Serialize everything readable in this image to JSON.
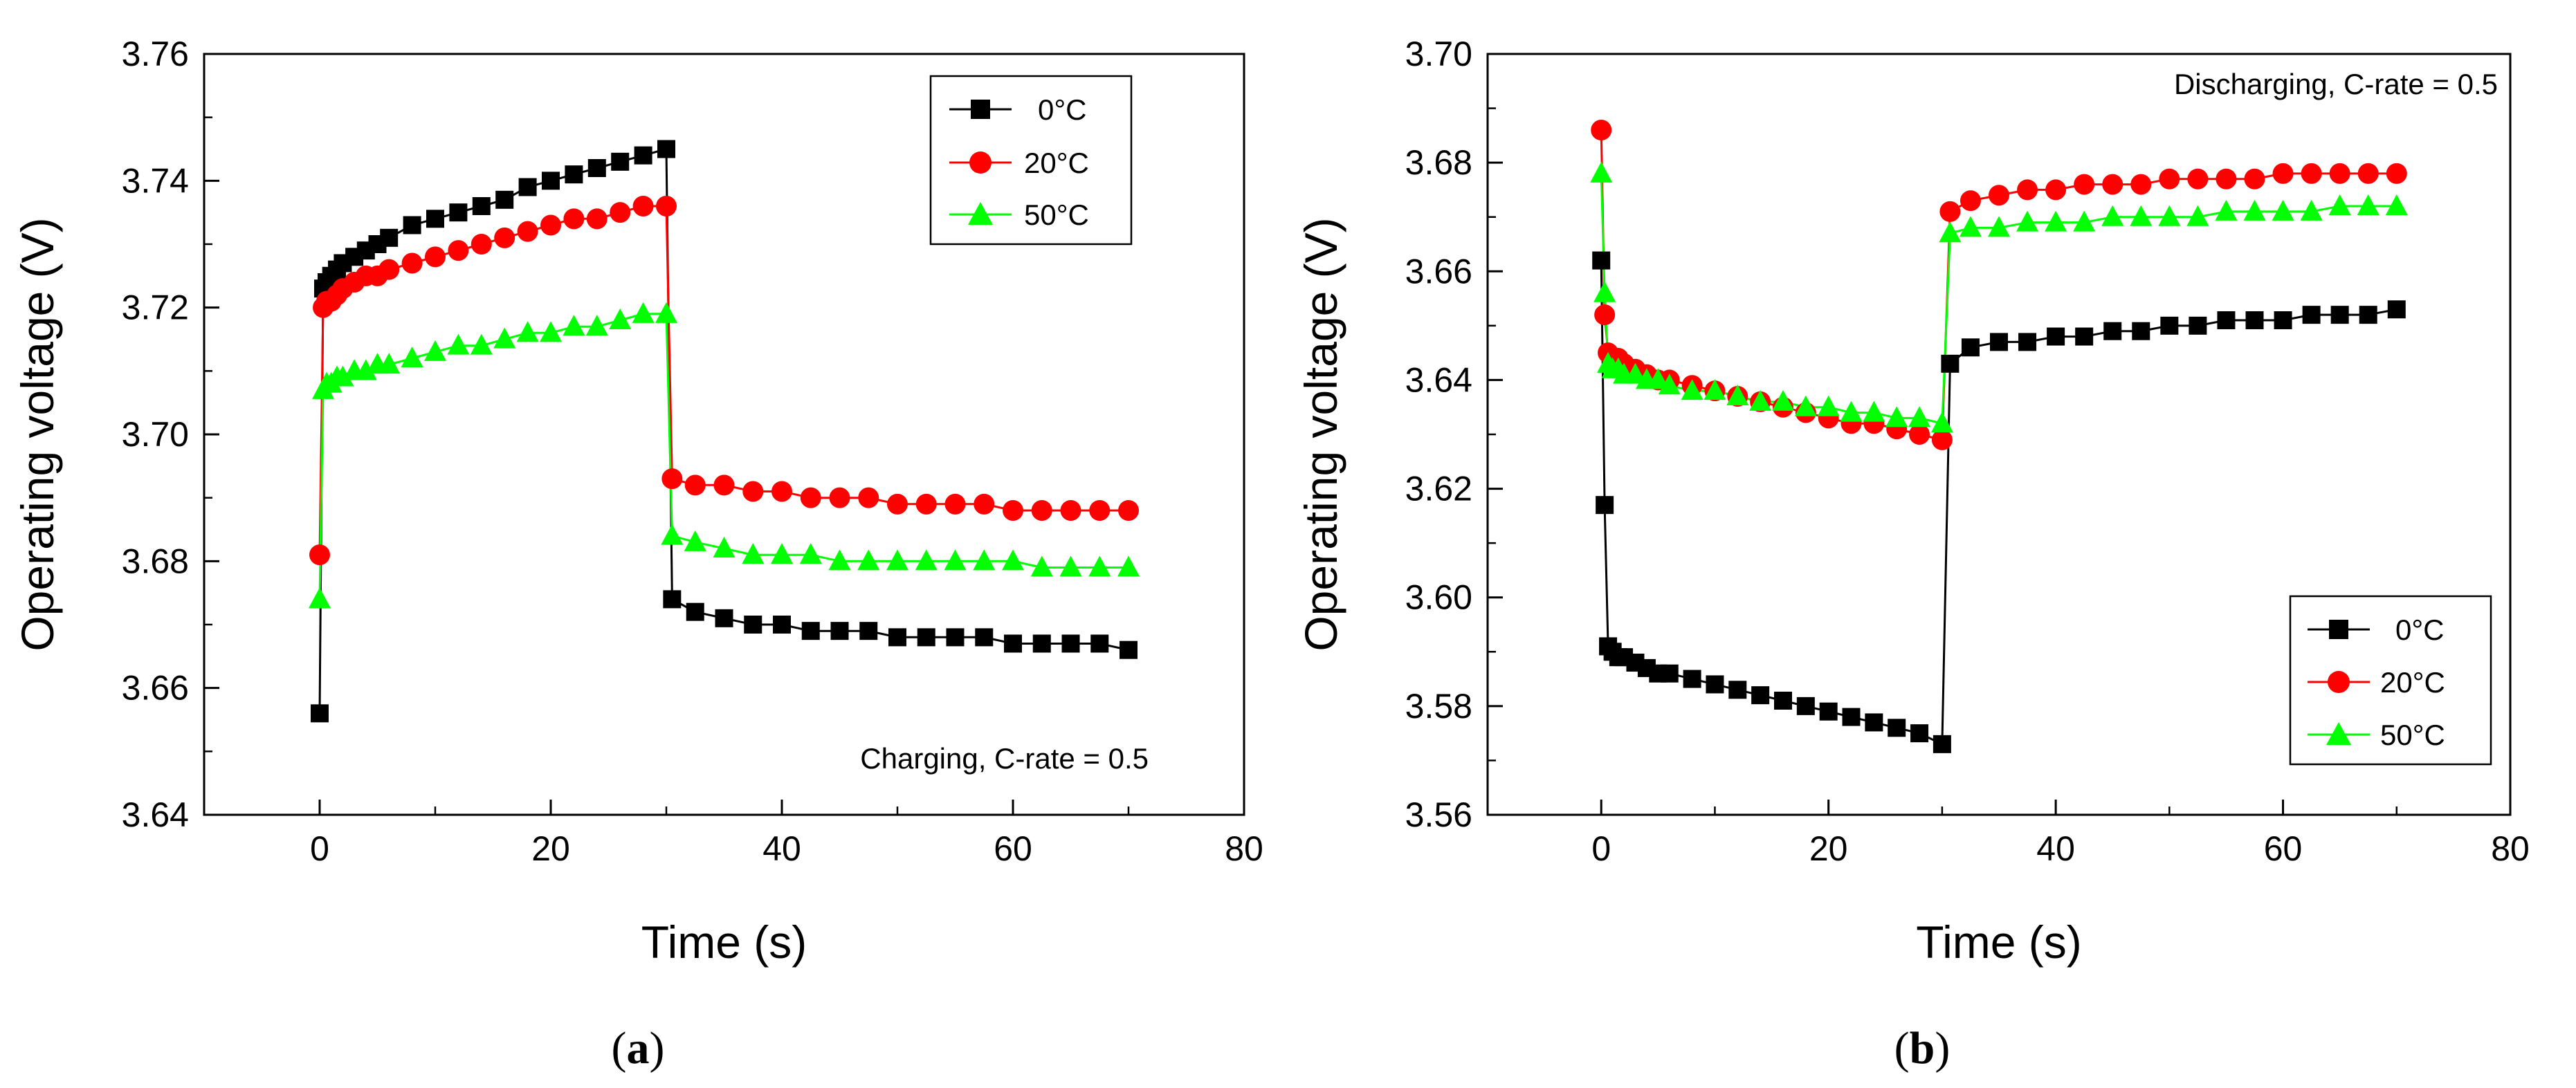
{
  "chart_data": [
    {
      "type": "line",
      "panel_label": "a",
      "annotation": "Charging, C-rate = 0.5",
      "xlabel": "Time (s)",
      "ylabel": "Operating voltage (V)",
      "xlim": [
        -10,
        80
      ],
      "ylim": [
        3.64,
        3.76
      ],
      "xticks": [
        0,
        20,
        40,
        60,
        80
      ],
      "yticks": [
        3.64,
        3.66,
        3.68,
        3.7,
        3.72,
        3.74,
        3.76
      ],
      "ytick_labels": [
        "3.64",
        "3.66",
        "3.68",
        "3.70",
        "3.72",
        "3.74",
        "3.76"
      ],
      "grid": false,
      "legend_position": "top-right",
      "series": [
        {
          "name": "0°C",
          "color": "#000000",
          "marker": "square",
          "x": [
            0,
            0.3,
            0.6,
            1,
            1.5,
            2,
            3,
            4,
            5,
            6,
            8,
            10,
            12,
            14,
            16,
            18,
            20,
            22,
            24,
            26,
            28,
            30,
            30.5,
            32.5,
            35,
            37.5,
            40,
            42.5,
            45,
            47.5,
            50,
            52.5,
            55,
            57.5,
            60,
            62.5,
            65,
            67.5,
            70
          ],
          "y": [
            3.656,
            3.723,
            3.724,
            3.725,
            3.726,
            3.727,
            3.728,
            3.729,
            3.73,
            3.731,
            3.733,
            3.734,
            3.735,
            3.736,
            3.737,
            3.739,
            3.74,
            3.741,
            3.742,
            3.743,
            3.744,
            3.745,
            3.674,
            3.672,
            3.671,
            3.67,
            3.67,
            3.669,
            3.669,
            3.669,
            3.668,
            3.668,
            3.668,
            3.668,
            3.667,
            3.667,
            3.667,
            3.667,
            3.666
          ]
        },
        {
          "name": "20°C",
          "color": "#ff0000",
          "marker": "circle",
          "x": [
            0,
            0.3,
            0.6,
            1,
            1.5,
            2,
            3,
            4,
            5,
            6,
            8,
            10,
            12,
            14,
            16,
            18,
            20,
            22,
            24,
            26,
            28,
            30,
            30.5,
            32.5,
            35,
            37.5,
            40,
            42.5,
            45,
            47.5,
            50,
            52.5,
            55,
            57.5,
            60,
            62.5,
            65,
            67.5,
            70
          ],
          "y": [
            3.681,
            3.72,
            3.721,
            3.721,
            3.722,
            3.723,
            3.724,
            3.725,
            3.725,
            3.726,
            3.727,
            3.728,
            3.729,
            3.73,
            3.731,
            3.732,
            3.733,
            3.734,
            3.734,
            3.735,
            3.736,
            3.736,
            3.693,
            3.692,
            3.692,
            3.691,
            3.691,
            3.69,
            3.69,
            3.69,
            3.689,
            3.689,
            3.689,
            3.689,
            3.688,
            3.688,
            3.688,
            3.688,
            3.688
          ]
        },
        {
          "name": "50°C",
          "color": "#00ff00",
          "marker": "triangle",
          "x": [
            0,
            0.3,
            0.6,
            1,
            1.5,
            2,
            3,
            4,
            5,
            6,
            8,
            10,
            12,
            14,
            16,
            18,
            20,
            22,
            24,
            26,
            28,
            30,
            30.5,
            32.5,
            35,
            37.5,
            40,
            42.5,
            45,
            47.5,
            50,
            52.5,
            55,
            57.5,
            60,
            62.5,
            65,
            67.5,
            70
          ],
          "y": [
            3.674,
            3.707,
            3.708,
            3.708,
            3.709,
            3.709,
            3.71,
            3.71,
            3.711,
            3.711,
            3.712,
            3.713,
            3.714,
            3.714,
            3.715,
            3.716,
            3.716,
            3.717,
            3.717,
            3.718,
            3.719,
            3.719,
            3.684,
            3.683,
            3.682,
            3.681,
            3.681,
            3.681,
            3.68,
            3.68,
            3.68,
            3.68,
            3.68,
            3.68,
            3.68,
            3.679,
            3.679,
            3.679,
            3.679
          ]
        }
      ]
    },
    {
      "type": "line",
      "panel_label": "b",
      "annotation": "Discharging, C-rate = 0.5",
      "xlabel": "Time (s)",
      "ylabel": "Operating voltage (V)",
      "xlim": [
        -10,
        80
      ],
      "ylim": [
        3.56,
        3.7
      ],
      "xticks": [
        0,
        20,
        40,
        60,
        80
      ],
      "yticks": [
        3.56,
        3.58,
        3.6,
        3.62,
        3.64,
        3.66,
        3.68,
        3.7
      ],
      "ytick_labels": [
        "3.56",
        "3.58",
        "3.60",
        "3.62",
        "3.64",
        "3.66",
        "3.68",
        "3.70"
      ],
      "grid": false,
      "legend_position": "bottom-right",
      "series": [
        {
          "name": "0°C",
          "color": "#000000",
          "marker": "square",
          "x": [
            0,
            0.3,
            0.6,
            1,
            1.5,
            2,
            3,
            4,
            5,
            6,
            8,
            10,
            12,
            14,
            16,
            18,
            20,
            22,
            24,
            26,
            28,
            30,
            30.7,
            32.5,
            35,
            37.5,
            40,
            42.5,
            45,
            47.5,
            50,
            52.5,
            55,
            57.5,
            60,
            62.5,
            65,
            67.5,
            70
          ],
          "y": [
            3.662,
            3.617,
            3.591,
            3.59,
            3.589,
            3.589,
            3.588,
            3.587,
            3.586,
            3.586,
            3.585,
            3.584,
            3.583,
            3.582,
            3.581,
            3.58,
            3.579,
            3.578,
            3.577,
            3.576,
            3.575,
            3.573,
            3.643,
            3.646,
            3.647,
            3.647,
            3.648,
            3.648,
            3.649,
            3.649,
            3.65,
            3.65,
            3.651,
            3.651,
            3.651,
            3.652,
            3.652,
            3.652,
            3.653
          ]
        },
        {
          "name": "20°C",
          "color": "#ff0000",
          "marker": "circle",
          "x": [
            0,
            0.3,
            0.6,
            1,
            1.5,
            2,
            3,
            4,
            5,
            6,
            8,
            10,
            12,
            14,
            16,
            18,
            20,
            22,
            24,
            26,
            28,
            30,
            30.7,
            32.5,
            35,
            37.5,
            40,
            42.5,
            45,
            47.5,
            50,
            52.5,
            55,
            57.5,
            60,
            62.5,
            65,
            67.5,
            70
          ],
          "y": [
            3.686,
            3.652,
            3.645,
            3.644,
            3.644,
            3.643,
            3.642,
            3.641,
            3.64,
            3.64,
            3.639,
            3.638,
            3.637,
            3.636,
            3.635,
            3.634,
            3.633,
            3.632,
            3.632,
            3.631,
            3.63,
            3.629,
            3.671,
            3.673,
            3.674,
            3.675,
            3.675,
            3.676,
            3.676,
            3.676,
            3.677,
            3.677,
            3.677,
            3.677,
            3.678,
            3.678,
            3.678,
            3.678,
            3.678
          ]
        },
        {
          "name": "50°C",
          "color": "#00ff00",
          "marker": "triangle",
          "x": [
            0,
            0.3,
            0.6,
            1,
            1.5,
            2,
            3,
            4,
            5,
            6,
            8,
            10,
            12,
            14,
            16,
            18,
            20,
            22,
            24,
            26,
            28,
            30,
            30.7,
            32.5,
            35,
            37.5,
            40,
            42.5,
            45,
            47.5,
            50,
            52.5,
            55,
            57.5,
            60,
            62.5,
            65,
            67.5,
            70
          ],
          "y": [
            3.678,
            3.656,
            3.643,
            3.642,
            3.642,
            3.641,
            3.641,
            3.64,
            3.64,
            3.639,
            3.638,
            3.638,
            3.637,
            3.636,
            3.636,
            3.635,
            3.635,
            3.634,
            3.634,
            3.633,
            3.633,
            3.632,
            3.667,
            3.668,
            3.668,
            3.669,
            3.669,
            3.669,
            3.67,
            3.67,
            3.67,
            3.67,
            3.671,
            3.671,
            3.671,
            3.671,
            3.672,
            3.672,
            3.672
          ]
        }
      ]
    }
  ]
}
